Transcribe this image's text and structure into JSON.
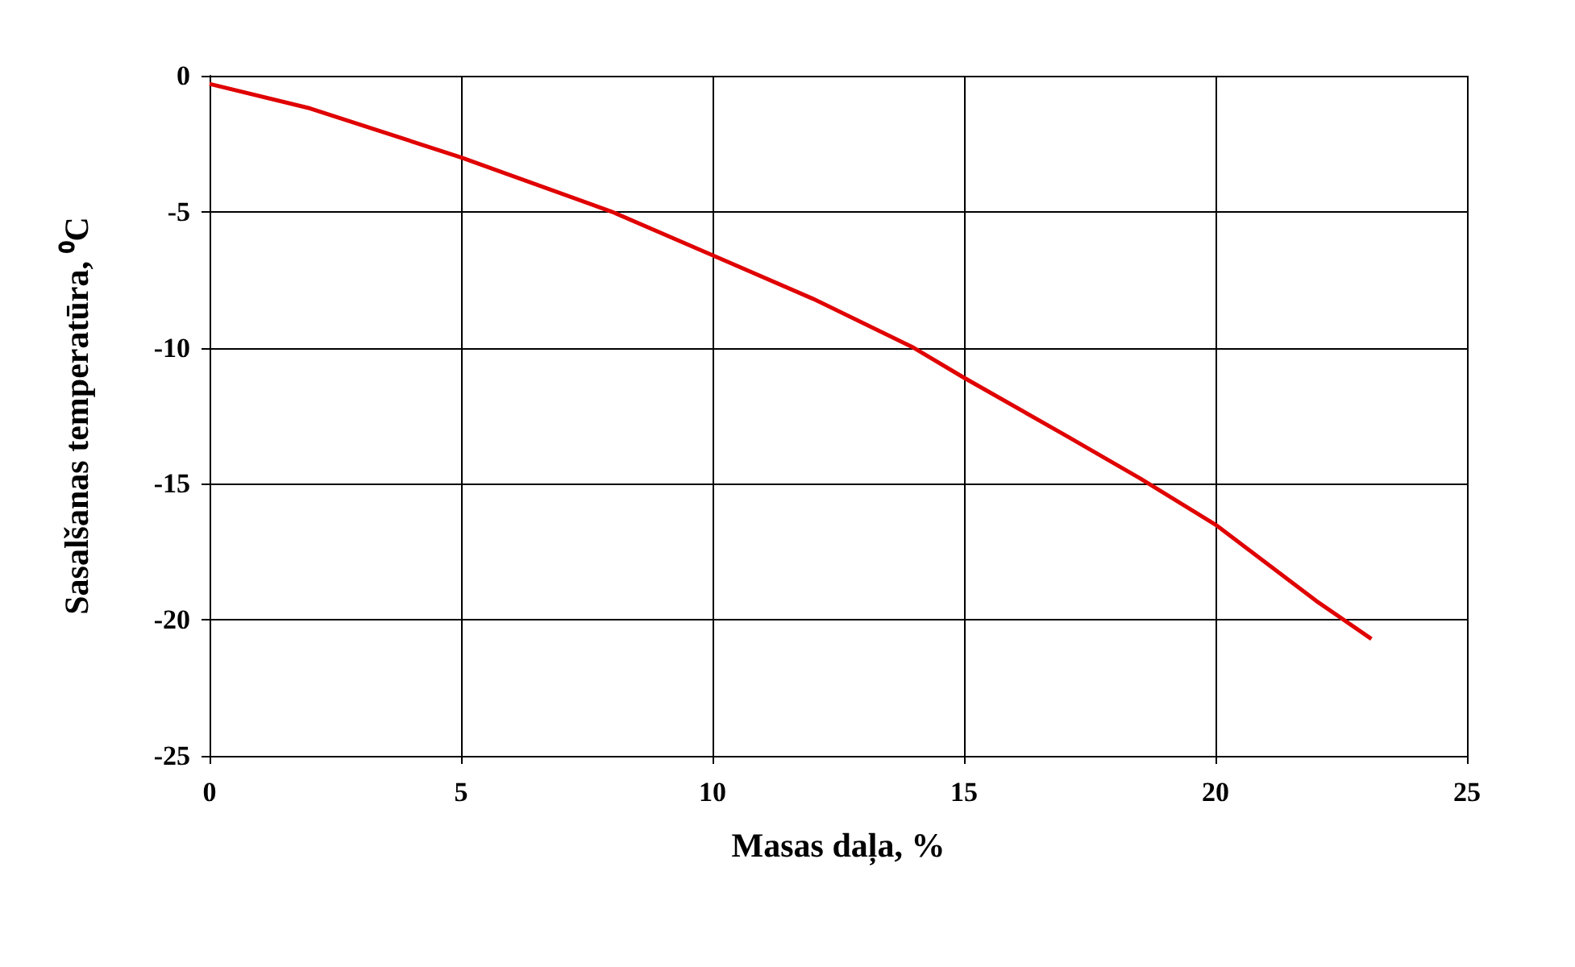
{
  "chart_data": {
    "type": "line",
    "xlabel": "Masas daļa, %",
    "ylabel": "Sasalšanas temperatūra, ⁰C",
    "series": [
      {
        "color": "#e00000",
        "x": [
          0,
          2,
          5,
          8,
          10,
          12,
          14,
          15,
          17,
          18.5,
          20,
          22,
          23.1
        ],
        "values": [
          -0.3,
          -1.2,
          -3,
          -5,
          -6.6,
          -8.2,
          -10,
          -11.1,
          -13.2,
          -14.8,
          -16.5,
          -19.3,
          -20.7
        ]
      }
    ],
    "xlim": [
      0,
      25
    ],
    "xticks": [
      0,
      5,
      10,
      15,
      20,
      25
    ],
    "ylim": [
      -25,
      0
    ],
    "yticks": [
      -25,
      -20,
      -15,
      -10,
      -5,
      0
    ],
    "grid": true,
    "marker": "none",
    "line_style": "solid"
  }
}
